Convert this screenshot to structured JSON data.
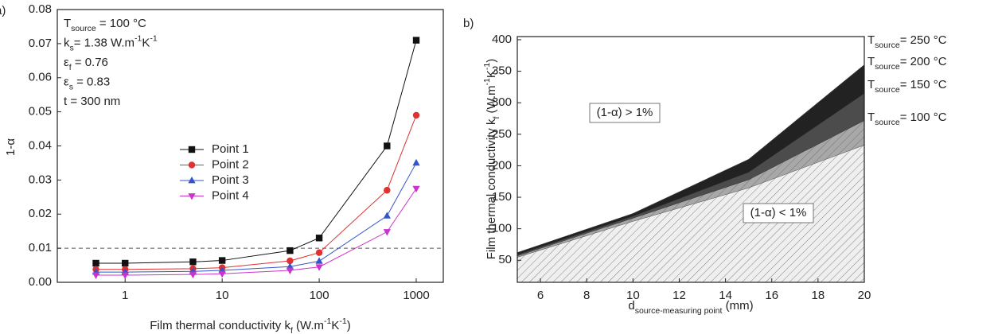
{
  "chart_data": [
    {
      "type": "line",
      "panel_label": "a)",
      "x_label": [
        {
          "text": "Film thermal conductivity k"
        },
        {
          "text": "f",
          "shift": "sub"
        },
        {
          "text": " (W.m"
        },
        {
          "text": "-1",
          "shift": "super"
        },
        {
          "text": "K"
        },
        {
          "text": "-1",
          "shift": "super"
        },
        {
          "text": ")"
        }
      ],
      "y_label": "1-α",
      "xscale": "log",
      "x": [
        0.5,
        1,
        5,
        10,
        50,
        100,
        500,
        1000
      ],
      "xlim": [
        0.2,
        1900
      ],
      "xticks": [
        1,
        10,
        100,
        1000
      ],
      "ylim": [
        0,
        0.08
      ],
      "yticks": [
        {
          "value": 0,
          "label": "0.00"
        },
        0.01,
        0.02,
        0.03,
        0.04,
        0.05,
        0.06,
        0.07,
        0.08
      ],
      "reference_line": {
        "value": 0.01,
        "style": "dashed"
      },
      "annotations": [
        [
          {
            "text": "T"
          },
          {
            "text": "source",
            "shift": "sub"
          },
          {
            "text": " = 100 °C"
          }
        ],
        [
          {
            "text": "k"
          },
          {
            "text": "s",
            "shift": "sub"
          },
          {
            "text": "= 1.38 W.m"
          },
          {
            "text": "-1",
            "shift": "super"
          },
          {
            "text": "K"
          },
          {
            "text": "-1",
            "shift": "super"
          }
        ],
        [
          {
            "text": "ε"
          },
          {
            "text": "f",
            "shift": "sub"
          },
          {
            "text": " = 0.76"
          }
        ],
        [
          {
            "text": "ε"
          },
          {
            "text": "s",
            "shift": "sub"
          },
          {
            "text": " = 0.83"
          }
        ],
        [
          {
            "text": "t = 300 nm"
          }
        ]
      ],
      "series": [
        {
          "name": "Point 1",
          "color": "#111111",
          "marker": "square",
          "values": [
            0.0056,
            0.0056,
            0.006,
            0.0064,
            0.0093,
            0.013,
            0.04,
            0.071
          ]
        },
        {
          "name": "Point 2",
          "color": "#e03030",
          "marker": "circle",
          "values": [
            0.0038,
            0.0038,
            0.004,
            0.0043,
            0.0063,
            0.0087,
            0.027,
            0.049
          ]
        },
        {
          "name": "Point 3",
          "color": "#3355cc",
          "marker": "triangle-up",
          "values": [
            0.003,
            0.003,
            0.0032,
            0.0035,
            0.0046,
            0.0062,
            0.0195,
            0.035
          ]
        },
        {
          "name": "Point 4",
          "color": "#cc33cc",
          "marker": "triangle-down",
          "values": [
            0.0021,
            0.0021,
            0.0023,
            0.0025,
            0.0035,
            0.0045,
            0.0148,
            0.0275
          ]
        }
      ]
    },
    {
      "type": "area",
      "panel_label": "b)",
      "x_label": [
        {
          "text": "d"
        },
        {
          "text": "source-measuring point",
          "shift": "sub"
        },
        {
          "text": " (mm)"
        }
      ],
      "y_label": [
        {
          "text": "Film thermal conductivity k"
        },
        {
          "text": "f",
          "shift": "sub"
        },
        {
          "text": " (W.m"
        },
        {
          "text": "-1",
          "shift": "super"
        },
        {
          "text": "K"
        },
        {
          "text": "-1",
          "shift": "super"
        },
        {
          "text": ")"
        }
      ],
      "x": [
        5,
        10,
        15,
        20
      ],
      "xlim": [
        5,
        20
      ],
      "xticks": [
        6,
        8,
        10,
        12,
        14,
        16,
        18,
        20
      ],
      "ylim": [
        15,
        405
      ],
      "yticks": [
        50,
        100,
        150,
        200,
        250,
        300,
        350,
        400
      ],
      "annotations": [
        "(1-α) > 1%",
        "(1-α) < 1%"
      ],
      "series": [
        {
          "name": [
            {
              "text": "T"
            },
            {
              "text": "source",
              "shift": "sub"
            },
            {
              "text": "= 100 °C"
            }
          ],
          "color": "#efefef",
          "hatched": true,
          "values": [
            55,
            112,
            165,
            233
          ]
        },
        {
          "name": [
            {
              "text": "T"
            },
            {
              "text": "source",
              "shift": "sub"
            },
            {
              "text": "= 150 °C"
            }
          ],
          "color": "#a8a8a8",
          "hatched": true,
          "values": [
            57,
            117,
            178,
            272
          ]
        },
        {
          "name": [
            {
              "text": "T"
            },
            {
              "text": "source",
              "shift": "sub"
            },
            {
              "text": "= 200 °C"
            }
          ],
          "color": "#4c4c4c",
          "hatched": false,
          "values": [
            59,
            120,
            190,
            315
          ]
        },
        {
          "name": [
            {
              "text": "T"
            },
            {
              "text": "source",
              "shift": "sub"
            },
            {
              "text": "= 250 °C"
            }
          ],
          "color": "#222222",
          "hatched": false,
          "values": [
            62,
            124,
            210,
            360
          ]
        }
      ]
    }
  ]
}
